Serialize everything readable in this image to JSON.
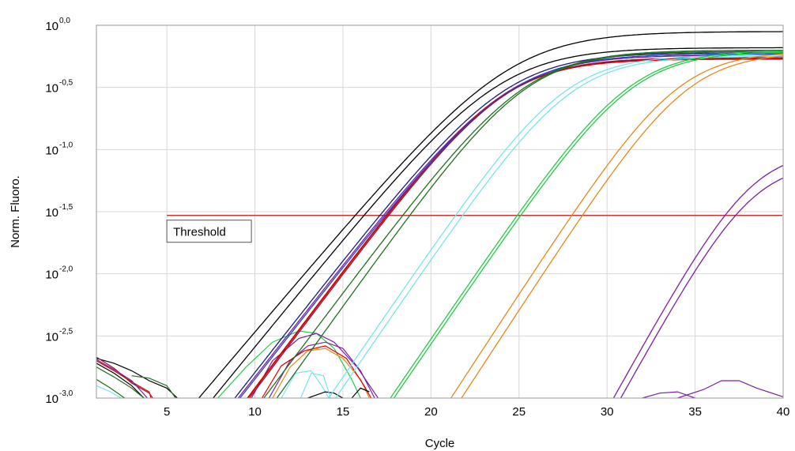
{
  "chart_data": {
    "type": "line",
    "xlabel": "Cycle",
    "ylabel": "Norm. Fluoro.",
    "y_scale": "log10",
    "xlim": [
      1,
      40
    ],
    "ylim_log10": [
      -3.0,
      0.0
    ],
    "grid": true,
    "x_ticks": [
      "5",
      "10",
      "15",
      "20",
      "25",
      "30",
      "35",
      "40"
    ],
    "y_ticks": [
      {
        "base": "10",
        "exp": "0,0"
      },
      {
        "base": "10",
        "exp": "-0,5"
      },
      {
        "base": "10",
        "exp": "-1,0"
      },
      {
        "base": "10",
        "exp": "-1,5"
      },
      {
        "base": "10",
        "exp": "-2,0"
      },
      {
        "base": "10",
        "exp": "-2,5"
      },
      {
        "base": "10",
        "exp": "-3,0"
      }
    ],
    "threshold": {
      "label": "Threshold",
      "log10_value": -1.53,
      "x_start": 5,
      "color": "#cc3333"
    },
    "series_colors": {
      "black": "#000000",
      "navy": "#1a1a7a",
      "blue": "#2244cc",
      "red": "#dd0000",
      "purple": "#7a1fa2",
      "darkgreen": "#1f6e1f",
      "cyan": "#77e4ee",
      "green": "#22cc44",
      "orange": "#e08a1a",
      "maroon": "#8b1a3a"
    },
    "series": [
      {
        "color": "black",
        "ct": 15.7,
        "plateau": -0.05,
        "k": 2.6
      },
      {
        "color": "black",
        "ct": 16.2,
        "plateau": -0.18,
        "k": 2.5
      },
      {
        "color": "navy",
        "ct": 17.1,
        "plateau": -0.22,
        "k": 2.4
      },
      {
        "color": "purple",
        "ct": 17.3,
        "plateau": -0.24,
        "k": 2.4
      },
      {
        "color": "red",
        "ct": 17.5,
        "plateau": -0.27,
        "k": 2.3
      },
      {
        "color": "blue",
        "ct": 17.4,
        "plateau": -0.23,
        "k": 2.4
      },
      {
        "color": "maroon",
        "ct": 17.6,
        "plateau": -0.26,
        "k": 2.3
      },
      {
        "color": "darkgreen",
        "ct": 18.4,
        "plateau": -0.2,
        "k": 2.3
      },
      {
        "color": "darkgreen",
        "ct": 18.8,
        "plateau": -0.21,
        "k": 2.2
      },
      {
        "color": "cyan",
        "ct": 21.4,
        "plateau": -0.24,
        "k": 2.1
      },
      {
        "color": "cyan",
        "ct": 21.8,
        "plateau": -0.25,
        "k": 2.1
      },
      {
        "color": "green",
        "ct": 24.9,
        "plateau": -0.2,
        "k": 2.1
      },
      {
        "color": "green",
        "ct": 25.1,
        "plateau": -0.21,
        "k": 2.1
      },
      {
        "color": "orange",
        "ct": 28.0,
        "plateau": -0.21,
        "k": 2.0
      },
      {
        "color": "orange",
        "ct": 28.6,
        "plateau": -0.22,
        "k": 2.0
      },
      {
        "color": "purple",
        "ct": 36.7,
        "plateau": -1.0,
        "k": 1.7
      },
      {
        "color": "purple",
        "ct": 37.3,
        "plateau": -1.1,
        "k": 1.7
      }
    ],
    "noise_curves": [
      {
        "color": "green",
        "points": [
          [
            7.9,
            -3.0
          ],
          [
            9.5,
            -2.75
          ],
          [
            11,
            -2.55
          ],
          [
            12.5,
            -2.46
          ],
          [
            13.5,
            -2.48
          ],
          [
            14.5,
            -2.6
          ],
          [
            15.5,
            -2.85
          ],
          [
            16.0,
            -3.0
          ]
        ]
      },
      {
        "color": "purple",
        "points": [
          [
            9.8,
            -3.0
          ],
          [
            11,
            -2.7
          ],
          [
            12.5,
            -2.52
          ],
          [
            13.5,
            -2.48
          ],
          [
            14.5,
            -2.55
          ],
          [
            15.8,
            -2.75
          ],
          [
            17,
            -3.0
          ]
        ]
      },
      {
        "color": "purple",
        "points": [
          [
            10.8,
            -3.0
          ],
          [
            12,
            -2.7
          ],
          [
            13,
            -2.58
          ],
          [
            14,
            -2.55
          ],
          [
            15,
            -2.6
          ],
          [
            16,
            -2.78
          ],
          [
            16.8,
            -3.0
          ]
        ]
      },
      {
        "color": "orange",
        "points": [
          [
            11,
            -3.0
          ],
          [
            12,
            -2.75
          ],
          [
            13,
            -2.62
          ],
          [
            14,
            -2.6
          ],
          [
            15,
            -2.68
          ],
          [
            16,
            -2.85
          ],
          [
            16.5,
            -3.0
          ]
        ]
      },
      {
        "color": "red",
        "points": [
          [
            10.4,
            -3.0
          ],
          [
            11.5,
            -2.74
          ],
          [
            12.8,
            -2.62
          ],
          [
            14,
            -2.58
          ],
          [
            15.2,
            -2.68
          ],
          [
            16.2,
            -2.9
          ],
          [
            16.6,
            -3.0
          ]
        ]
      },
      {
        "color": "cyan",
        "points": [
          [
            11.5,
            -3.0
          ],
          [
            12.3,
            -2.8
          ],
          [
            13.2,
            -2.78
          ],
          [
            13.8,
            -2.9
          ],
          [
            14.2,
            -3.0
          ]
        ]
      },
      {
        "color": "purple",
        "points": [
          [
            32.0,
            -3.0
          ],
          [
            33.0,
            -2.96
          ],
          [
            34.0,
            -2.95
          ],
          [
            35.0,
            -3.0
          ]
        ]
      },
      {
        "color": "purple",
        "points": [
          [
            34.0,
            -3.0
          ],
          [
            35.5,
            -2.93
          ],
          [
            36.5,
            -2.86
          ],
          [
            37.5,
            -2.86
          ],
          [
            38.5,
            -2.92
          ],
          [
            40,
            -2.99
          ]
        ]
      },
      {
        "color": "black",
        "points": [
          [
            1,
            -2.68
          ],
          [
            2,
            -2.72
          ],
          [
            3,
            -2.78
          ],
          [
            4,
            -2.86
          ],
          [
            5,
            -2.92
          ],
          [
            5.6,
            -3.0
          ]
        ]
      },
      {
        "color": "black",
        "points": [
          [
            1,
            -2.72
          ],
          [
            2,
            -2.8
          ],
          [
            3,
            -2.9
          ],
          [
            3.7,
            -3.0
          ]
        ]
      },
      {
        "color": "darkgreen",
        "points": [
          [
            1,
            -2.75
          ],
          [
            2,
            -2.83
          ],
          [
            3,
            -2.92
          ],
          [
            3.7,
            -3.0
          ]
        ]
      },
      {
        "color": "maroon",
        "points": [
          [
            1,
            -2.67
          ],
          [
            2,
            -2.76
          ],
          [
            3,
            -2.88
          ],
          [
            4,
            -2.96
          ],
          [
            4.2,
            -3.0
          ]
        ]
      },
      {
        "color": "red",
        "points": [
          [
            1,
            -2.7
          ],
          [
            2,
            -2.78
          ],
          [
            3,
            -2.87
          ],
          [
            4,
            -2.95
          ],
          [
            4.1,
            -3.0
          ]
        ]
      },
      {
        "color": "purple",
        "points": [
          [
            1,
            -2.69
          ],
          [
            2,
            -2.77
          ],
          [
            3,
            -2.86
          ],
          [
            3.9,
            -3.0
          ]
        ]
      },
      {
        "color": "darkgreen",
        "points": [
          [
            1,
            -2.85
          ],
          [
            1.8,
            -2.92
          ],
          [
            2.6,
            -3.0
          ]
        ]
      },
      {
        "color": "cyan",
        "points": [
          [
            1,
            -2.9
          ],
          [
            1.8,
            -2.95
          ],
          [
            2.4,
            -3.0
          ]
        ]
      },
      {
        "color": "darkgreen",
        "points": [
          [
            3,
            -2.82
          ],
          [
            4,
            -2.84
          ],
          [
            5,
            -2.9
          ],
          [
            5.5,
            -3.0
          ]
        ]
      },
      {
        "color": "black",
        "points": [
          [
            13,
            -3.0
          ],
          [
            14,
            -2.95
          ],
          [
            14.5,
            -2.96
          ],
          [
            15,
            -3.0
          ]
        ]
      },
      {
        "color": "black",
        "points": [
          [
            15.5,
            -3.0
          ],
          [
            16,
            -2.92
          ],
          [
            16.5,
            -2.95
          ]
        ]
      },
      {
        "color": "cyan",
        "points": [
          [
            12.6,
            -3.0
          ],
          [
            13.2,
            -2.8
          ],
          [
            13.9,
            -2.82
          ],
          [
            14.3,
            -3.0
          ]
        ]
      }
    ]
  }
}
